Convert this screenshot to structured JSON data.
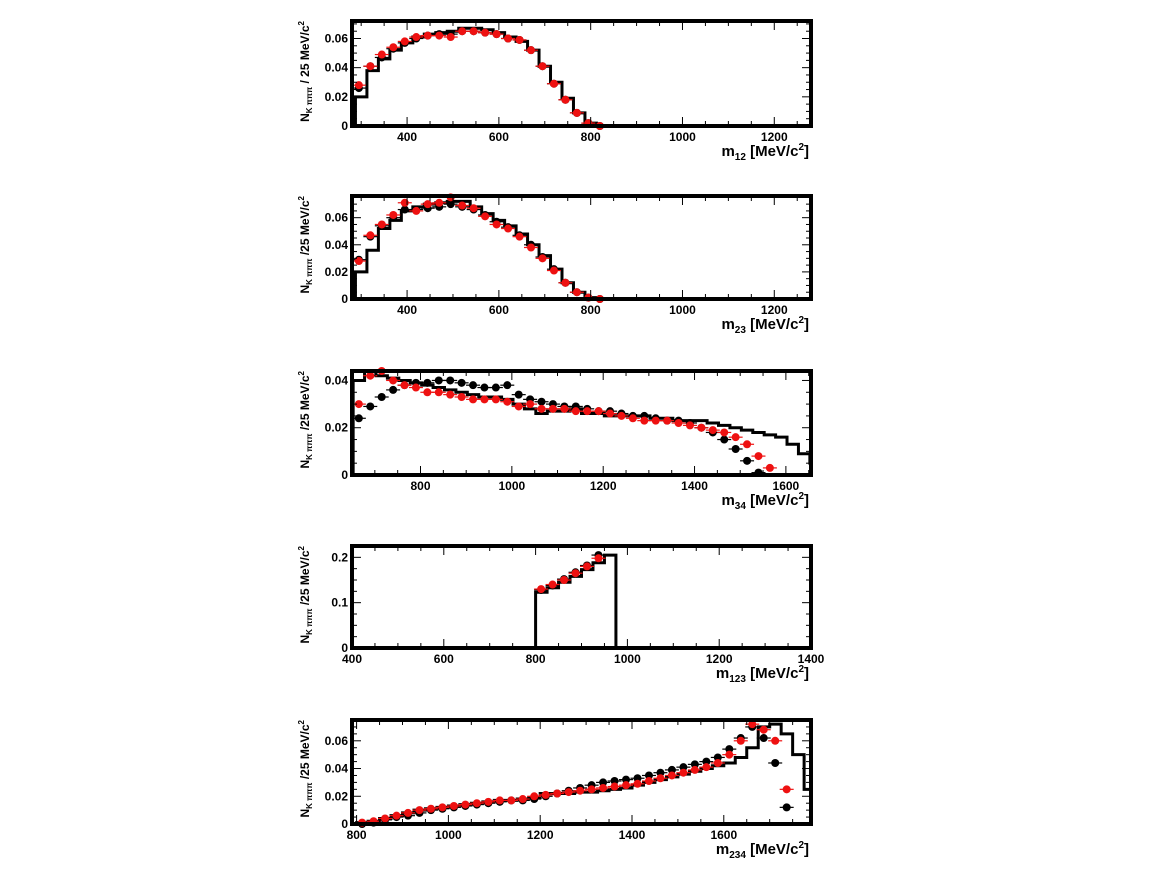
{
  "chart_data": [
    {
      "type": "histogram",
      "ylabel_main": "N",
      "ylabel_sub": "K πππ",
      "ylabel_unit": " / 25 MeV/c",
      "ylabel_sup": "2",
      "xlabel_main": "m",
      "xlabel_sub": "12",
      "xlabel_unit": " [MeV/c",
      "xlabel_sup": "2",
      "xlabel_close": "]",
      "xlim": [
        280,
        1280
      ],
      "ylim": [
        0,
        0.072
      ],
      "xticks": [
        400,
        600,
        800,
        1000,
        1200
      ],
      "yticks": [
        0,
        0.02,
        0.04,
        0.06
      ],
      "ytick_labels": [
        "0",
        "0.02",
        "0.04",
        "0.06"
      ],
      "bin_width": 25,
      "histogram": {
        "x0": 287.5,
        "values": [
          0.02,
          0.038,
          0.046,
          0.052,
          0.057,
          0.061,
          0.063,
          0.064,
          0.065,
          0.067,
          0.067,
          0.066,
          0.064,
          0.061,
          0.058,
          0.052,
          0.041,
          0.03,
          0.019,
          0.009,
          0.002,
          0.0
        ]
      },
      "series": [
        {
          "name": "",
          "color": "#000000",
          "x": [
            295,
            320,
            345,
            370,
            395,
            420,
            445,
            470,
            495,
            520,
            545,
            570,
            595,
            620,
            645,
            670,
            695,
            720,
            745,
            770,
            795,
            820
          ],
          "y": [
            0.026,
            0.041,
            0.047,
            0.053,
            0.057,
            0.06,
            0.062,
            0.063,
            0.063,
            0.065,
            0.065,
            0.064,
            0.063,
            0.06,
            0.059,
            0.052,
            0.041,
            0.029,
            0.018,
            0.009,
            0.002,
            0.0
          ]
        },
        {
          "name": "",
          "color": "#ee1111",
          "x": [
            295,
            320,
            345,
            370,
            395,
            420,
            445,
            470,
            495,
            520,
            545,
            570,
            595,
            620,
            645,
            670,
            695,
            720,
            745,
            770,
            795,
            820
          ],
          "y": [
            0.028,
            0.041,
            0.049,
            0.054,
            0.058,
            0.061,
            0.062,
            0.062,
            0.061,
            0.065,
            0.065,
            0.064,
            0.063,
            0.06,
            0.059,
            0.052,
            0.041,
            0.029,
            0.018,
            0.009,
            0.002,
            0.0
          ]
        }
      ]
    },
    {
      "type": "histogram",
      "ylabel_main": "N",
      "ylabel_sub": "K πππ",
      "ylabel_unit": " /25 MeV/c",
      "ylabel_sup": "2",
      "xlabel_main": "m",
      "xlabel_sub": "23",
      "xlabel_unit": " [MeV/c",
      "xlabel_sup": "2",
      "xlabel_close": "]",
      "xlim": [
        280,
        1280
      ],
      "ylim": [
        0,
        0.076
      ],
      "xticks": [
        400,
        600,
        800,
        1000,
        1200
      ],
      "yticks": [
        0,
        0.02,
        0.04,
        0.06
      ],
      "ytick_labels": [
        "0",
        "0.02",
        "0.04",
        "0.06"
      ],
      "bin_width": 25,
      "histogram": {
        "x0": 287.5,
        "values": [
          0.02,
          0.036,
          0.052,
          0.058,
          0.065,
          0.068,
          0.07,
          0.071,
          0.072,
          0.072,
          0.068,
          0.063,
          0.058,
          0.054,
          0.048,
          0.04,
          0.032,
          0.022,
          0.012,
          0.005,
          0.001,
          0.0
        ]
      },
      "series": [
        {
          "name": "",
          "color": "#000000",
          "x": [
            295,
            320,
            345,
            370,
            395,
            420,
            445,
            470,
            495,
            520,
            545,
            570,
            595,
            620,
            645,
            670,
            695,
            720,
            745,
            770,
            795,
            820
          ],
          "y": [
            0.029,
            0.046,
            0.054,
            0.06,
            0.066,
            0.066,
            0.067,
            0.068,
            0.07,
            0.068,
            0.066,
            0.062,
            0.057,
            0.053,
            0.047,
            0.04,
            0.031,
            0.022,
            0.012,
            0.005,
            0.001,
            0.0
          ]
        },
        {
          "name": "",
          "color": "#ee1111",
          "x": [
            295,
            320,
            345,
            370,
            395,
            420,
            445,
            470,
            495,
            520,
            545,
            570,
            595,
            620,
            645,
            670,
            695,
            720,
            745,
            770,
            795,
            820
          ],
          "y": [
            0.028,
            0.047,
            0.055,
            0.062,
            0.071,
            0.065,
            0.07,
            0.071,
            0.075,
            0.069,
            0.067,
            0.061,
            0.055,
            0.052,
            0.046,
            0.038,
            0.03,
            0.021,
            0.012,
            0.005,
            0.001,
            0.0
          ]
        }
      ]
    },
    {
      "type": "histogram",
      "ylabel_main": "N",
      "ylabel_sub": "K πππ",
      "ylabel_unit": " /25 MeV/c",
      "ylabel_sup": "2",
      "xlabel_main": "m",
      "xlabel_sub": "34",
      "xlabel_unit": " [MeV/c",
      "xlabel_sup": "2",
      "xlabel_close": "]",
      "xlim": [
        650,
        1655
      ],
      "ylim": [
        0,
        0.044
      ],
      "xticks": [
        800,
        1000,
        1200,
        1400,
        1600
      ],
      "yticks": [
        0,
        0.02,
        0.04
      ],
      "ytick_labels": [
        "0",
        "0.02",
        "0.04"
      ],
      "bin_width": 25,
      "histogram": {
        "x0": 652.5,
        "values": [
          0.04,
          0.044,
          0.042,
          0.041,
          0.04,
          0.039,
          0.038,
          0.037,
          0.036,
          0.035,
          0.034,
          0.033,
          0.033,
          0.032,
          0.03,
          0.028,
          0.026,
          0.027,
          0.027,
          0.028,
          0.026,
          0.026,
          0.025,
          0.025,
          0.025,
          0.025,
          0.024,
          0.024,
          0.023,
          0.023,
          0.023,
          0.022,
          0.021,
          0.02,
          0.019,
          0.018,
          0.017,
          0.016,
          0.013,
          0.009,
          0.005,
          0.001
        ]
      },
      "series": [
        {
          "name": "",
          "color": "#000000",
          "x": [
            665,
            690,
            715,
            740,
            765,
            790,
            815,
            840,
            865,
            890,
            915,
            940,
            965,
            990,
            1015,
            1040,
            1065,
            1090,
            1115,
            1140,
            1165,
            1190,
            1215,
            1240,
            1265,
            1290,
            1315,
            1340,
            1365,
            1390,
            1415,
            1440,
            1465,
            1490,
            1515,
            1540
          ],
          "y": [
            0.024,
            0.029,
            0.033,
            0.036,
            0.038,
            0.039,
            0.039,
            0.04,
            0.04,
            0.039,
            0.038,
            0.037,
            0.037,
            0.038,
            0.034,
            0.032,
            0.031,
            0.03,
            0.029,
            0.029,
            0.028,
            0.027,
            0.027,
            0.026,
            0.025,
            0.025,
            0.024,
            0.023,
            0.023,
            0.022,
            0.02,
            0.018,
            0.015,
            0.011,
            0.006,
            0.001
          ]
        },
        {
          "name": "",
          "color": "#ee1111",
          "x": [
            665,
            690,
            715,
            740,
            765,
            790,
            815,
            840,
            865,
            890,
            915,
            940,
            965,
            990,
            1015,
            1040,
            1065,
            1090,
            1115,
            1140,
            1165,
            1190,
            1215,
            1240,
            1265,
            1290,
            1315,
            1340,
            1365,
            1390,
            1415,
            1440,
            1465,
            1490,
            1515,
            1540,
            1565
          ],
          "y": [
            0.03,
            0.042,
            0.044,
            0.04,
            0.038,
            0.037,
            0.035,
            0.035,
            0.034,
            0.033,
            0.032,
            0.032,
            0.032,
            0.031,
            0.029,
            0.03,
            0.028,
            0.028,
            0.028,
            0.027,
            0.027,
            0.027,
            0.026,
            0.025,
            0.024,
            0.023,
            0.023,
            0.023,
            0.022,
            0.021,
            0.02,
            0.019,
            0.018,
            0.016,
            0.013,
            0.008,
            0.003
          ]
        }
      ]
    },
    {
      "type": "histogram",
      "ylabel_main": "N",
      "ylabel_sub": "K πππ",
      "ylabel_unit": " /25 MeV/c",
      "ylabel_sup": "2",
      "xlabel_main": "m",
      "xlabel_sub": "123",
      "xlabel_unit": " [MeV/c",
      "xlabel_sup": "2",
      "xlabel_close": "]",
      "xlim": [
        400,
        1400
      ],
      "ylim": [
        0,
        0.225
      ],
      "xticks": [
        400,
        600,
        800,
        1000,
        1200,
        1400
      ],
      "yticks": [
        0,
        0.1,
        0.2
      ],
      "ytick_labels": [
        "0",
        "0.1",
        "0.2"
      ],
      "bin_width": 25,
      "histogram": {
        "x0": 800,
        "values": [
          0.123,
          0.133,
          0.145,
          0.158,
          0.173,
          0.188,
          0.205
        ]
      },
      "series": [
        {
          "name": "",
          "color": "#000000",
          "x": [
            812,
            837,
            862,
            887,
            912,
            937
          ],
          "y": [
            0.128,
            0.138,
            0.152,
            0.167,
            0.182,
            0.205
          ]
        },
        {
          "name": "",
          "color": "#ee1111",
          "x": [
            812,
            837,
            862,
            887,
            912,
            937
          ],
          "y": [
            0.13,
            0.14,
            0.15,
            0.165,
            0.18,
            0.198
          ]
        }
      ]
    },
    {
      "type": "histogram",
      "ylabel_main": "N",
      "ylabel_sub": "K πππ",
      "ylabel_unit": " /25 MeV/c",
      "ylabel_sup": "2",
      "xlabel_main": "m",
      "xlabel_sub": "234",
      "xlabel_unit": " [MeV/c",
      "xlabel_sup": "2",
      "xlabel_close": "]",
      "xlim": [
        790,
        1790
      ],
      "ylim": [
        0,
        0.075
      ],
      "xticks": [
        800,
        1000,
        1200,
        1400,
        1600
      ],
      "yticks": [
        0,
        0.02,
        0.04,
        0.06
      ],
      "ytick_labels": [
        "0",
        "0.02",
        "0.04",
        "0.06"
      ],
      "bin_width": 25,
      "histogram": {
        "x0": 800,
        "values": [
          0.001,
          0.002,
          0.004,
          0.006,
          0.008,
          0.01,
          0.011,
          0.012,
          0.013,
          0.014,
          0.015,
          0.016,
          0.017,
          0.017,
          0.018,
          0.019,
          0.022,
          0.022,
          0.022,
          0.023,
          0.023,
          0.024,
          0.025,
          0.026,
          0.028,
          0.03,
          0.032,
          0.034,
          0.036,
          0.038,
          0.04,
          0.042,
          0.044,
          0.048,
          0.055,
          0.07,
          0.072,
          0.065,
          0.05,
          0.025,
          0.0
        ]
      },
      "series": [
        {
          "name": "",
          "color": "#000000",
          "x": [
            812,
            837,
            862,
            887,
            912,
            937,
            962,
            987,
            1012,
            1037,
            1062,
            1087,
            1112,
            1137,
            1162,
            1187,
            1212,
            1237,
            1262,
            1287,
            1312,
            1337,
            1362,
            1387,
            1412,
            1437,
            1462,
            1487,
            1512,
            1537,
            1562,
            1587,
            1612,
            1637,
            1662,
            1687,
            1712,
            1737
          ],
          "y": [
            0.0,
            0.001,
            0.003,
            0.005,
            0.006,
            0.008,
            0.01,
            0.011,
            0.012,
            0.013,
            0.014,
            0.015,
            0.016,
            0.017,
            0.017,
            0.018,
            0.02,
            0.022,
            0.024,
            0.026,
            0.028,
            0.03,
            0.031,
            0.032,
            0.033,
            0.035,
            0.037,
            0.039,
            0.041,
            0.043,
            0.045,
            0.048,
            0.054,
            0.062,
            0.07,
            0.062,
            0.044,
            0.012
          ]
        },
        {
          "name": "",
          "color": "#ee1111",
          "x": [
            812,
            837,
            862,
            887,
            912,
            937,
            962,
            987,
            1012,
            1037,
            1062,
            1087,
            1112,
            1137,
            1162,
            1187,
            1212,
            1237,
            1262,
            1287,
            1312,
            1337,
            1362,
            1387,
            1412,
            1437,
            1462,
            1487,
            1512,
            1537,
            1562,
            1587,
            1612,
            1637,
            1662,
            1687,
            1712,
            1737
          ],
          "y": [
            0.001,
            0.002,
            0.004,
            0.006,
            0.008,
            0.01,
            0.011,
            0.012,
            0.013,
            0.014,
            0.015,
            0.016,
            0.017,
            0.017,
            0.018,
            0.02,
            0.021,
            0.022,
            0.023,
            0.024,
            0.025,
            0.026,
            0.027,
            0.028,
            0.029,
            0.031,
            0.033,
            0.035,
            0.037,
            0.039,
            0.041,
            0.044,
            0.05,
            0.06,
            0.072,
            0.068,
            0.06,
            0.025
          ]
        }
      ]
    }
  ]
}
